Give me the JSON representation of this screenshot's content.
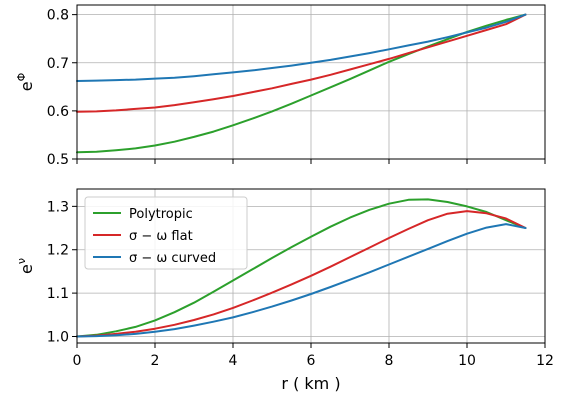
{
  "chart_data": [
    {
      "type": "line",
      "ylabel_base": "e",
      "ylabel_sup": "Φ",
      "xlim": [
        0,
        12
      ],
      "ylim": [
        0.5,
        0.82
      ],
      "yticks": [
        0.5,
        0.6,
        0.7,
        0.8
      ],
      "ytick_labels": [
        "0.5",
        "0.6",
        "0.7",
        "0.8"
      ],
      "xticks": [
        0,
        2,
        4,
        6,
        8,
        10,
        12
      ],
      "grid": true,
      "series": [
        {
          "color": "#2ca02c",
          "x": [
            0,
            0.5,
            1,
            1.5,
            2,
            2.5,
            3,
            3.5,
            4,
            4.5,
            5,
            5.5,
            6,
            6.5,
            7,
            7.5,
            8,
            8.5,
            9,
            9.5,
            10,
            10.5,
            11,
            11.5
          ],
          "y": [
            0.514,
            0.515,
            0.518,
            0.522,
            0.528,
            0.536,
            0.546,
            0.557,
            0.57,
            0.584,
            0.599,
            0.615,
            0.632,
            0.649,
            0.666,
            0.684,
            0.702,
            0.718,
            0.734,
            0.749,
            0.764,
            0.777,
            0.789,
            0.8
          ]
        },
        {
          "color": "#d62728",
          "x": [
            0,
            0.5,
            1,
            1.5,
            2,
            2.5,
            3,
            3.5,
            4,
            4.5,
            5,
            5.5,
            6,
            6.5,
            7,
            7.5,
            8,
            8.5,
            9,
            9.5,
            10,
            10.5,
            11,
            11.5
          ],
          "y": [
            0.598,
            0.599,
            0.601,
            0.604,
            0.607,
            0.612,
            0.618,
            0.624,
            0.631,
            0.639,
            0.647,
            0.656,
            0.665,
            0.675,
            0.686,
            0.697,
            0.708,
            0.72,
            0.732,
            0.744,
            0.756,
            0.768,
            0.78,
            0.8
          ]
        },
        {
          "color": "#1f77b4",
          "x": [
            0,
            0.5,
            1,
            1.5,
            2,
            2.5,
            3,
            3.5,
            4,
            4.5,
            5,
            5.5,
            6,
            6.5,
            7,
            7.5,
            8,
            8.5,
            9,
            9.5,
            10,
            10.5,
            11,
            11.5
          ],
          "y": [
            0.662,
            0.663,
            0.664,
            0.665,
            0.667,
            0.669,
            0.672,
            0.676,
            0.68,
            0.684,
            0.689,
            0.694,
            0.7,
            0.706,
            0.713,
            0.72,
            0.728,
            0.736,
            0.744,
            0.753,
            0.763,
            0.773,
            0.785,
            0.8
          ]
        }
      ]
    },
    {
      "type": "line",
      "ylabel_base": "e",
      "ylabel_sup": "ν",
      "xlabel": "r ( km )",
      "xlim": [
        0,
        12
      ],
      "ylim": [
        0.985,
        1.34
      ],
      "yticks": [
        1.0,
        1.1,
        1.2,
        1.3
      ],
      "ytick_labels": [
        "1.0",
        "1.1",
        "1.2",
        "1.3"
      ],
      "xticks": [
        0,
        2,
        4,
        6,
        8,
        10,
        12
      ],
      "xtick_labels": [
        "0",
        "2",
        "4",
        "6",
        "8",
        "10",
        "12"
      ],
      "grid": true,
      "legend_position": "upper-left",
      "legend_prefix": "σ − ω",
      "series": [
        {
          "name": "Polytropic",
          "color": "#2ca02c",
          "x": [
            0,
            0.5,
            1,
            1.5,
            2,
            2.5,
            3,
            3.5,
            4,
            4.5,
            5,
            5.5,
            6,
            6.5,
            7,
            7.5,
            8,
            8.5,
            9,
            9.5,
            10,
            10.5,
            11,
            11.5
          ],
          "y": [
            1.0,
            1.004,
            1.012,
            1.022,
            1.037,
            1.056,
            1.078,
            1.103,
            1.129,
            1.155,
            1.181,
            1.206,
            1.23,
            1.253,
            1.274,
            1.292,
            1.306,
            1.315,
            1.316,
            1.31,
            1.3,
            1.287,
            1.268,
            1.25
          ]
        },
        {
          "name": "σ − ω flat",
          "color": "#d62728",
          "x": [
            0,
            0.5,
            1,
            1.5,
            2,
            2.5,
            3,
            3.5,
            4,
            4.5,
            5,
            5.5,
            6,
            6.5,
            7,
            7.5,
            8,
            8.5,
            9,
            9.5,
            10,
            10.5,
            11,
            11.5
          ],
          "y": [
            1.0,
            1.002,
            1.006,
            1.011,
            1.018,
            1.027,
            1.038,
            1.051,
            1.066,
            1.083,
            1.101,
            1.12,
            1.14,
            1.161,
            1.183,
            1.205,
            1.227,
            1.248,
            1.268,
            1.283,
            1.289,
            1.284,
            1.272,
            1.25
          ]
        },
        {
          "name": "σ − ω curved",
          "color": "#1f77b4",
          "x": [
            0,
            0.5,
            1,
            1.5,
            2,
            2.5,
            3,
            3.5,
            4,
            4.5,
            5,
            5.5,
            6,
            6.5,
            7,
            7.5,
            8,
            8.5,
            9,
            9.5,
            10,
            10.5,
            11,
            11.5
          ],
          "y": [
            1.0,
            1.001,
            1.003,
            1.006,
            1.011,
            1.017,
            1.025,
            1.034,
            1.044,
            1.056,
            1.069,
            1.083,
            1.098,
            1.114,
            1.131,
            1.148,
            1.166,
            1.184,
            1.202,
            1.22,
            1.237,
            1.251,
            1.259,
            1.25
          ]
        }
      ]
    }
  ]
}
